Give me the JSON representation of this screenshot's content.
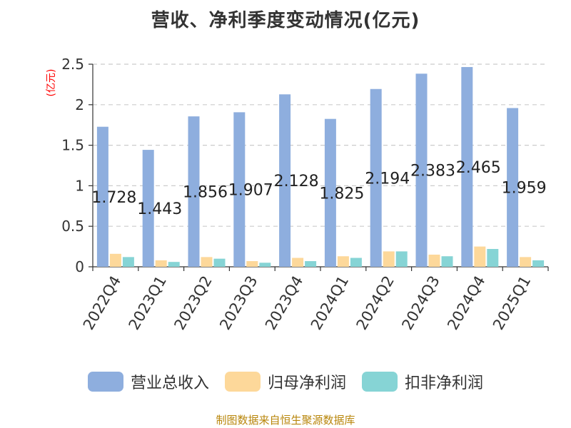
{
  "chart_data": {
    "type": "bar",
    "title": "营收、净利季度变动情况(亿元)",
    "ylabel": "(亿元)",
    "ylim": [
      0,
      2.5
    ],
    "yticks": [
      "0",
      "0.5",
      "1",
      "1.5",
      "2",
      "2.5"
    ],
    "grid": true,
    "legend_position": "bottom",
    "categories": [
      "2022Q4",
      "2023Q1",
      "2023Q2",
      "2023Q3",
      "2023Q4",
      "2024Q1",
      "2024Q2",
      "2024Q3",
      "2024Q4",
      "2025Q1"
    ],
    "series": [
      {
        "name": "营业总收入",
        "color": "#8eaede",
        "values": [
          1.728,
          1.443,
          1.856,
          1.907,
          2.128,
          1.825,
          2.194,
          2.383,
          2.465,
          1.959
        ],
        "labels": [
          "1.728",
          "1.443",
          "1.856",
          "1.907",
          "2.128",
          "1.825",
          "2.194",
          "2.383",
          "2.465",
          "1.959"
        ]
      },
      {
        "name": "归母净利润",
        "color": "#fdd89a",
        "values": [
          0.16,
          0.08,
          0.12,
          0.07,
          0.11,
          0.13,
          0.19,
          0.15,
          0.25,
          0.12
        ]
      },
      {
        "name": "扣非净利润",
        "color": "#86d4d5",
        "values": [
          0.12,
          0.06,
          0.1,
          0.05,
          0.07,
          0.11,
          0.19,
          0.13,
          0.22,
          0.08
        ]
      }
    ]
  },
  "footer": {
    "source": "制图数据来自恒生聚源数据库"
  },
  "colors": {
    "ylabel": "#ff0000",
    "source": "#b8860b"
  }
}
